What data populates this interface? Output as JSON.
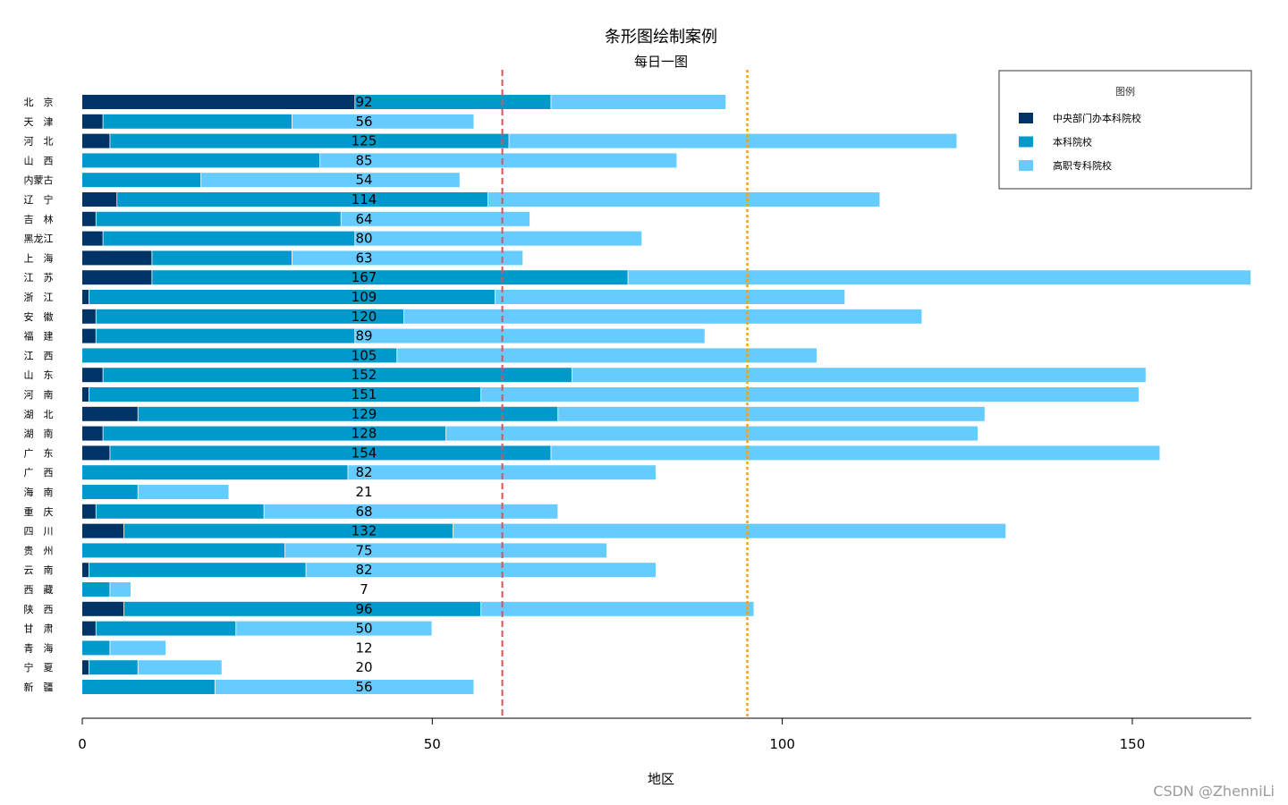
{
  "chart_data": {
    "type": "bar",
    "orientation": "horizontal",
    "stacked": true,
    "title": "条形图绘制案例",
    "subtitle": "每日一图",
    "xlabel": "地区",
    "xlim": [
      0,
      167
    ],
    "xticks": [
      0,
      50,
      100,
      150
    ],
    "categories": [
      "北　京",
      "天　津",
      "河　北",
      "山　西",
      "内蒙古",
      "辽　宁",
      "吉　林",
      "黑龙江",
      "上　海",
      "江　苏",
      "浙　江",
      "安　徽",
      "福　建",
      "江　西",
      "山　东",
      "河　南",
      "湖　北",
      "湖　南",
      "广　东",
      "广　西",
      "海　南",
      "重　庆",
      "四　川",
      "贵　州",
      "云　南",
      "西　藏",
      "陕　西",
      "甘　肃",
      "青　海",
      "宁　夏",
      "新　疆"
    ],
    "series": [
      {
        "name": "中央部门办本科院校",
        "color": "#003366",
        "values": [
          39,
          3,
          4,
          0,
          0,
          5,
          2,
          3,
          10,
          10,
          1,
          2,
          2,
          0,
          3,
          1,
          8,
          3,
          4,
          0,
          0,
          2,
          6,
          0,
          1,
          0,
          6,
          2,
          0,
          1,
          0
        ]
      },
      {
        "name": "本科院校",
        "color": "#0099cc",
        "values": [
          28,
          27,
          57,
          34,
          17,
          53,
          35,
          36,
          20,
          68,
          58,
          44,
          37,
          45,
          67,
          56,
          60,
          49,
          63,
          38,
          8,
          24,
          47,
          29,
          31,
          4,
          51,
          20,
          4,
          7,
          19
        ]
      },
      {
        "name": "高职专科院校",
        "color": "#66ccff",
        "values": [
          25,
          26,
          64,
          51,
          37,
          56,
          27,
          41,
          33,
          89,
          50,
          74,
          50,
          60,
          82,
          94,
          61,
          76,
          87,
          44,
          13,
          42,
          79,
          46,
          50,
          3,
          39,
          28,
          8,
          12,
          37
        ]
      }
    ],
    "totals": [
      92,
      56,
      125,
      85,
      54,
      114,
      64,
      80,
      63,
      167,
      109,
      120,
      89,
      105,
      152,
      151,
      129,
      128,
      154,
      82,
      21,
      68,
      132,
      75,
      82,
      7,
      96,
      50,
      12,
      20,
      56
    ],
    "reference_lines": [
      {
        "x": 60,
        "color": "#e0505a",
        "style": "dashed"
      },
      {
        "x": 95,
        "color": "#f5a01a",
        "style": "dotted"
      }
    ],
    "legend": {
      "title": "图例",
      "position": "top-right",
      "items": [
        "中央部门办本科院校",
        "本科院校",
        "高职专科院校"
      ]
    },
    "grid": false
  },
  "watermark": "CSDN @ZhenniLi"
}
